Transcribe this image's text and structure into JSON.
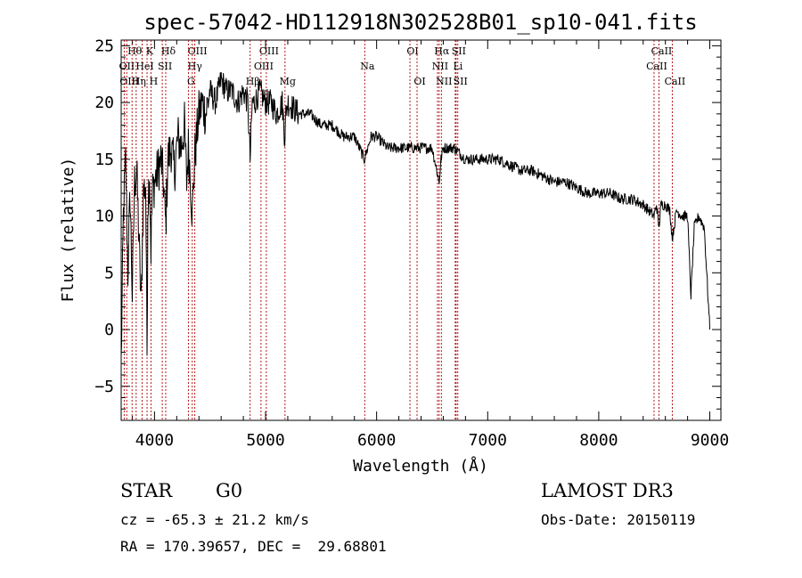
{
  "chart_data": {
    "type": "line",
    "title": "spec-57042-HD112918N302528B01_sp10-041.fits",
    "xlabel": "Wavelength (Å)",
    "ylabel": "Flux (relative)",
    "xlim": [
      3700,
      9100
    ],
    "ylim": [
      -8,
      25.5
    ],
    "xticks": [
      4000,
      5000,
      6000,
      7000,
      8000,
      9000
    ],
    "yticks": [
      -5,
      0,
      5,
      10,
      15,
      20,
      25
    ],
    "grid": false,
    "series": [
      {
        "name": "flux",
        "x": [
          3700,
          3720,
          3740,
          3760,
          3780,
          3800,
          3820,
          3840,
          3860,
          3880,
          3900,
          3920,
          3933,
          3940,
          3955,
          3968,
          3980,
          4000,
          4030,
          4060,
          4080,
          4101,
          4120,
          4150,
          4180,
          4210,
          4240,
          4270,
          4290,
          4305,
          4320,
          4340,
          4360,
          4380,
          4400,
          4430,
          4460,
          4500,
          4550,
          4600,
          4650,
          4700,
          4750,
          4800,
          4840,
          4861,
          4880,
          4900,
          4950,
          5000,
          5050,
          5100,
          5150,
          5172,
          5183,
          5200,
          5300,
          5400,
          5500,
          5600,
          5700,
          5800,
          5890,
          5950,
          6000,
          6100,
          6200,
          6300,
          6400,
          6500,
          6563,
          6580,
          6600,
          6700,
          6800,
          6900,
          7000,
          7100,
          7200,
          7300,
          7400,
          7500,
          7600,
          7700,
          7800,
          7900,
          8000,
          8100,
          8200,
          8300,
          8400,
          8498,
          8520,
          8542,
          8560,
          8600,
          8640,
          8662,
          8700,
          8750,
          8800,
          8830,
          8860,
          8900,
          8950,
          9000
        ],
        "values": [
          -3,
          10,
          15,
          5,
          12,
          3,
          13,
          14,
          8,
          2,
          12,
          13,
          -2,
          11,
          14,
          7,
          12,
          13,
          14,
          15,
          13,
          9,
          15,
          16,
          14,
          17,
          16,
          18,
          13,
          16,
          14,
          10,
          15,
          17,
          19,
          20,
          19,
          21,
          20,
          22,
          21,
          21,
          20,
          21,
          20,
          15,
          20,
          20,
          21,
          20,
          20,
          19,
          20,
          17,
          19,
          20,
          19,
          19,
          18,
          18,
          17,
          17,
          15,
          17,
          17,
          16,
          16,
          16,
          16,
          16,
          13,
          15,
          16,
          16,
          15,
          15,
          15,
          15,
          14.5,
          14,
          14,
          13.5,
          13,
          13,
          12.5,
          12,
          12,
          12,
          11.5,
          11.5,
          11,
          10,
          11,
          9,
          11,
          11,
          10.5,
          8,
          10.5,
          10,
          10,
          3,
          9,
          10,
          9,
          0
        ]
      }
    ],
    "lines": [
      {
        "label": "Hθ",
        "x": 3798,
        "row": 0
      },
      {
        "label": "K",
        "x": 3933,
        "row": 0
      },
      {
        "label": "Hδ",
        "x": 4101,
        "row": 0
      },
      {
        "label": "OIII",
        "x": 4363,
        "row": 0
      },
      {
        "label": "OIII",
        "x": 5007,
        "row": 0
      },
      {
        "label": "OI",
        "x": 6300,
        "row": 0
      },
      {
        "label": "Hα",
        "x": 6563,
        "row": 0
      },
      {
        "label": "SII",
        "x": 6716,
        "row": 0
      },
      {
        "label": "CaII",
        "x": 8542,
        "row": 0
      },
      {
        "label": "OII",
        "x": 3727,
        "row": 1
      },
      {
        "label": "HeI",
        "x": 3889,
        "row": 1
      },
      {
        "label": "SII",
        "x": 4070,
        "row": 1
      },
      {
        "label": "Hγ",
        "x": 4340,
        "row": 1
      },
      {
        "label": "OIII",
        "x": 4959,
        "row": 1
      },
      {
        "label": "Na",
        "x": 5893,
        "row": 1
      },
      {
        "label": "NII",
        "x": 6548,
        "row": 1
      },
      {
        "label": "Li",
        "x": 6708,
        "row": 1
      },
      {
        "label": "CaII",
        "x": 8498,
        "row": 1
      },
      {
        "label": "OIII",
        "x": 3750,
        "row": 2
      },
      {
        "label": "Hη",
        "x": 3835,
        "row": 2
      },
      {
        "label": "H",
        "x": 3968,
        "row": 2
      },
      {
        "label": "G",
        "x": 4305,
        "row": 2
      },
      {
        "label": "Hβ",
        "x": 4861,
        "row": 2
      },
      {
        "label": "Mg",
        "x": 5175,
        "row": 2
      },
      {
        "label": "OI",
        "x": 6364,
        "row": 2
      },
      {
        "label": "NII",
        "x": 6583,
        "row": 2
      },
      {
        "label": "SII",
        "x": 6731,
        "row": 2
      },
      {
        "label": "CaII",
        "x": 8662,
        "row": 2
      }
    ]
  },
  "footer": {
    "object_class": "STAR",
    "subclass": "G0",
    "survey": "LAMOST DR3",
    "cz": "cz = -65.3 ± 21.2 km/s",
    "obs_date": "Obs-Date: 20150119",
    "coords": "RA = 170.39657, DEC =  29.68801"
  }
}
